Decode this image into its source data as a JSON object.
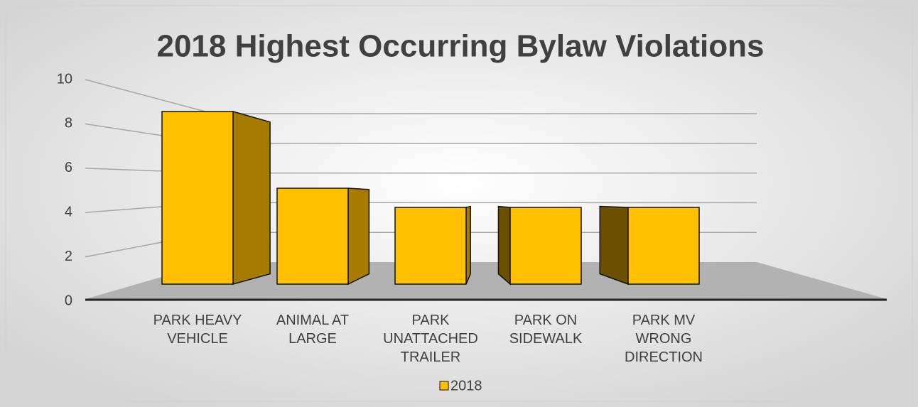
{
  "chart_data": {
    "type": "bar3d",
    "title": "2018 Highest Occurring Bylaw Violations",
    "categories": [
      "PARK HEAVY VEHICLE",
      "ANIMAL AT LARGE",
      "PARK UNATTACHED TRAILER",
      "PARK ON SIDEWALK",
      "PARK MV WRONG DIRECTION"
    ],
    "series": [
      {
        "name": "2018",
        "color": "#ffc000",
        "values": [
          9,
          5,
          4,
          4,
          4
        ]
      }
    ],
    "ylim": [
      0,
      10
    ],
    "yticks": [
      0,
      2,
      4,
      6,
      8,
      10
    ],
    "grid": true,
    "legend": "bottom"
  }
}
